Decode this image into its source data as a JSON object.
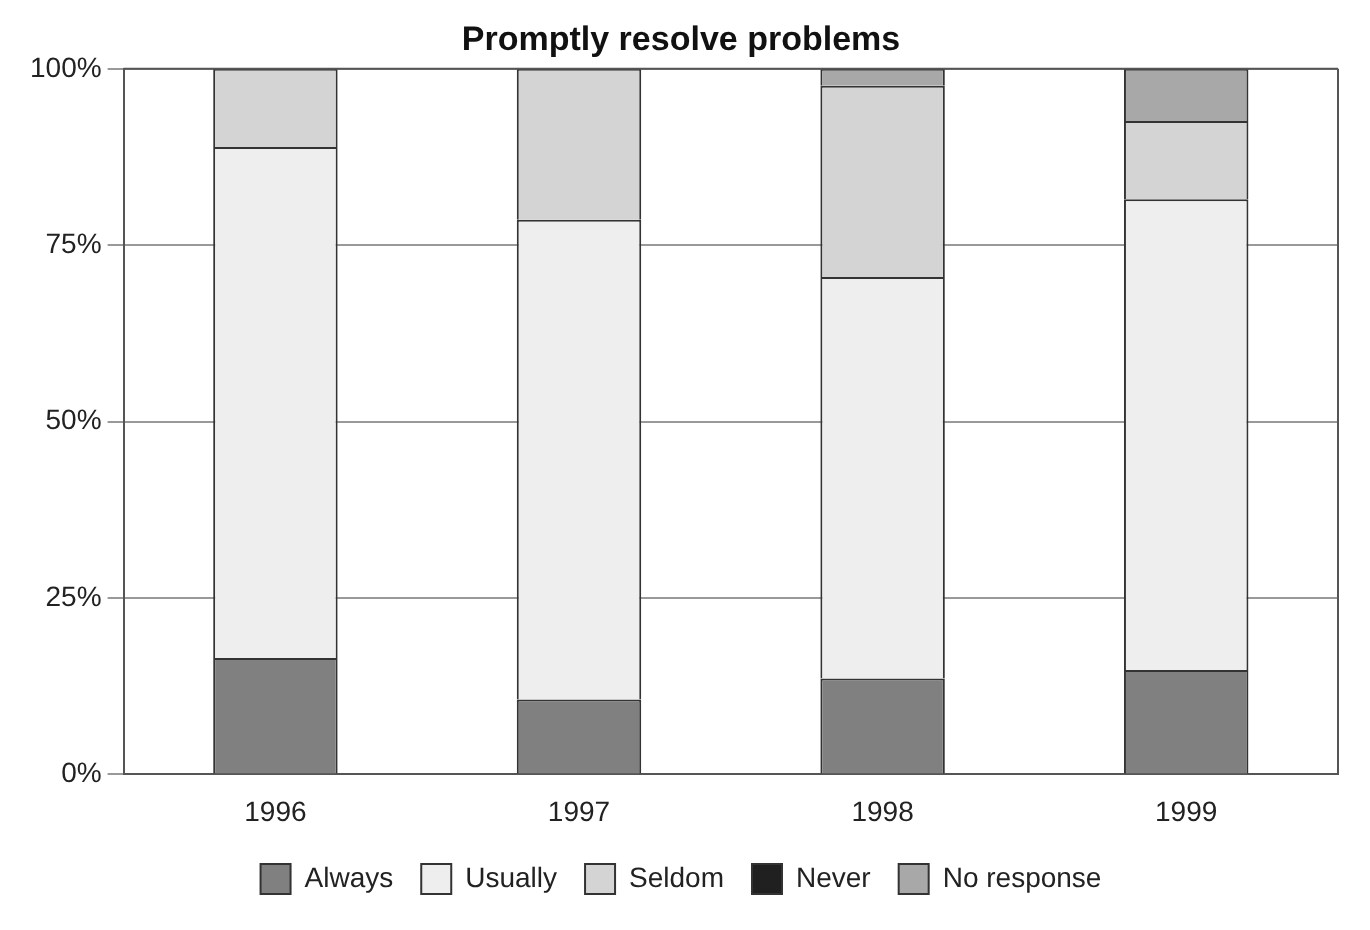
{
  "chart_data": {
    "type": "bar",
    "title": "Promptly resolve problems",
    "categories": [
      "1996",
      "1997",
      "1998",
      "1999"
    ],
    "stacked": true,
    "ylim": [
      0,
      100
    ],
    "yticks": [
      {
        "value": 0,
        "label": "0%"
      },
      {
        "value": 25,
        "label": "25%"
      },
      {
        "value": 50,
        "label": "50%"
      },
      {
        "value": 75,
        "label": "75%"
      },
      {
        "value": 100,
        "label": "100%"
      }
    ],
    "grid": "y",
    "legend": "bottom",
    "series": [
      {
        "name": "Always",
        "color": "#808080",
        "values": [
          16.5,
          10.6,
          13.6,
          14.8
        ]
      },
      {
        "name": "Usually",
        "color": "#eeeeee",
        "values": [
          72.4,
          68.0,
          56.9,
          66.7
        ]
      },
      {
        "name": "Seldom",
        "color": "#d4d4d4",
        "values": [
          11.1,
          21.4,
          27.1,
          11.1
        ]
      },
      {
        "name": "Never",
        "color": "#202020",
        "values": [
          0,
          0,
          0,
          0
        ]
      },
      {
        "name": "No response",
        "color": "#a8a8a8",
        "values": [
          0,
          0,
          2.4,
          7.4
        ]
      }
    ]
  }
}
